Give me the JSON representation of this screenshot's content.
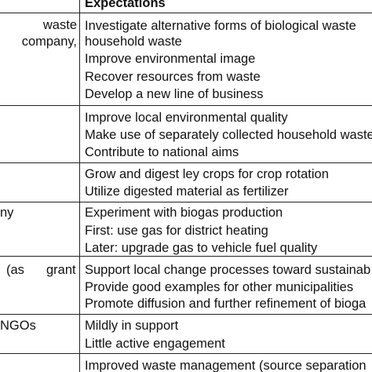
{
  "header": {
    "expectations": "Expectations"
  },
  "rows": [
    {
      "left": [
        "waste",
        "company,"
      ],
      "lines": [
        "Investigate alternative forms of biological waste",
        "household waste",
        "Improve environmental image",
        "Recover resources from waste",
        "Develop a new line of business"
      ]
    },
    {
      "left": [],
      "lines": [
        "Improve local environmental quality",
        "Make use of separately collected household waste",
        "Contribute to national aims"
      ]
    },
    {
      "left": [],
      "lines": [
        "Grow and digest ley crops for crop rotation",
        "Utilize digested material as fertilizer"
      ]
    },
    {
      "left": [
        "ny"
      ],
      "lines": [
        "Experiment with biogas production",
        "First: use gas for district heating",
        "Later: upgrade gas to vehicle fuel quality"
      ]
    },
    {
      "left": [
        "(as",
        "grant"
      ],
      "lines": [
        "Support local change processes toward sustainab",
        "Provide good examples for other municipalities",
        "Promote diffusion and further refinement of bioga"
      ]
    },
    {
      "left": [
        "NGOs"
      ],
      "lines": [
        "Mildly in support",
        "Little active engagement"
      ]
    },
    {
      "left": [],
      "lines": [
        "Improved waste management (source separation"
      ]
    }
  ]
}
